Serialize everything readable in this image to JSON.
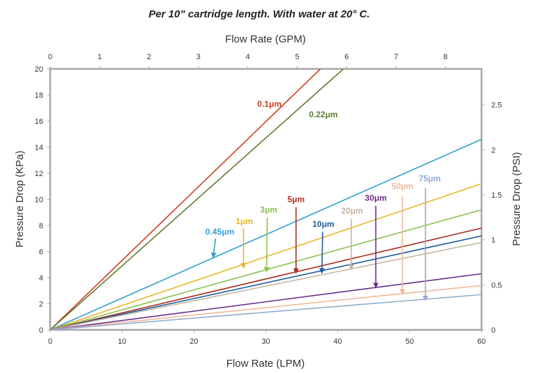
{
  "chart_data": {
    "type": "line",
    "title": "Per 10” cartridge length. With water at 20° C.",
    "xlabel": "Flow Rate (LPM)",
    "ylabel": "Pressure Drop (KPa)",
    "x2label": "Flow Rate (GPM)",
    "y2label": "Pressure Drop (PSI)",
    "xlim": [
      0,
      60
    ],
    "ylim": [
      0,
      20
    ],
    "x2lim": [
      0,
      8.73
    ],
    "y2lim": [
      0,
      2.9
    ],
    "xticks": [
      "0",
      "10",
      "20",
      "30",
      "40",
      "50",
      "60"
    ],
    "yticks": [
      "0",
      "2",
      "4",
      "6",
      "8",
      "10",
      "12",
      "14",
      "16",
      "18",
      "20"
    ],
    "x2ticks": [
      "0",
      "1",
      "2",
      "3",
      "4",
      "5",
      "6",
      "7",
      "8"
    ],
    "y2ticks": [
      "0",
      "0.5",
      "1",
      "1.5",
      "2",
      "2.5"
    ],
    "grid": false,
    "legend": "none",
    "series": [
      {
        "name": "0.1μm",
        "color": "#d03a1e",
        "x": [
          0,
          37.6
        ],
        "y": [
          0,
          20
        ]
      },
      {
        "name": "0.22μm",
        "color": "#5e7a30",
        "x": [
          0,
          40.8
        ],
        "y": [
          0,
          20
        ]
      },
      {
        "name": "0.45μm",
        "color": "#31a0cc",
        "x": [
          0,
          60
        ],
        "y": [
          0,
          14.6
        ]
      },
      {
        "name": "1μm",
        "color": "#e8b428",
        "x": [
          0,
          60
        ],
        "y": [
          0,
          11.2
        ]
      },
      {
        "name": "3μm",
        "color": "#8cc050",
        "x": [
          0,
          60
        ],
        "y": [
          0,
          9.2
        ]
      },
      {
        "name": "5μm",
        "color": "#a8301f",
        "x": [
          0,
          60
        ],
        "y": [
          0,
          7.8
        ]
      },
      {
        "name": "10μm",
        "color": "#1f5aa0",
        "x": [
          0,
          60
        ],
        "y": [
          0,
          7.2
        ]
      },
      {
        "name": "20μm",
        "color": "#c4b5a0",
        "x": [
          0,
          60
        ],
        "y": [
          0,
          6.7
        ]
      },
      {
        "name": "30μm",
        "color": "#6a2c8a",
        "x": [
          0,
          60
        ],
        "y": [
          0,
          4.3
        ]
      },
      {
        "name": "50μm",
        "color": "#f0b896",
        "x": [
          0,
          60
        ],
        "y": [
          0,
          3.4
        ]
      },
      {
        "name": "75μm",
        "color": "#90acd0",
        "x": [
          0,
          60
        ],
        "y": [
          0,
          2.7
        ]
      }
    ],
    "annotations": [
      {
        "text": "0.1μm",
        "color": "#d03a1e",
        "label_at": [
          30.5,
          17.1
        ],
        "arrow": false
      },
      {
        "text": "0.22μm",
        "color": "#5e7a30",
        "label_at": [
          38.0,
          16.3
        ],
        "arrow": false
      },
      {
        "text": "0.45μm",
        "color": "#31a0cc",
        "label_at": [
          23.6,
          7.3
        ],
        "arrow": true,
        "arrow_from": [
          23.0,
          7.0
        ],
        "arrow_to": [
          22.7,
          5.7
        ]
      },
      {
        "text": "1μm",
        "color": "#e8b428",
        "label_at": [
          27.0,
          8.1
        ],
        "arrow": true,
        "arrow_from": [
          26.9,
          7.8
        ],
        "arrow_to": [
          26.9,
          4.9
        ]
      },
      {
        "text": "3μm",
        "color": "#8cc050",
        "label_at": [
          30.4,
          9.0
        ],
        "arrow": true,
        "arrow_from": [
          30.2,
          8.6
        ],
        "arrow_to": [
          30.1,
          4.6
        ]
      },
      {
        "text": "5μm",
        "color": "#a8301f",
        "label_at": [
          34.2,
          9.8
        ],
        "arrow": true,
        "arrow_from": [
          34.2,
          9.4
        ],
        "arrow_to": [
          34.2,
          4.5
        ]
      },
      {
        "text": "10μm",
        "color": "#1f5aa0",
        "label_at": [
          38.0,
          7.9
        ],
        "arrow": true,
        "arrow_from": [
          37.9,
          7.5
        ],
        "arrow_to": [
          37.8,
          4.5
        ]
      },
      {
        "text": "20μm",
        "color": "#c4b5a0",
        "label_at": [
          42.0,
          8.9
        ],
        "arrow": true,
        "arrow_from": [
          41.9,
          8.5
        ],
        "arrow_to": [
          41.9,
          4.8
        ]
      },
      {
        "text": "30μm",
        "color": "#6a2c8a",
        "label_at": [
          45.3,
          9.9
        ],
        "arrow": true,
        "arrow_from": [
          45.3,
          9.5
        ],
        "arrow_to": [
          45.3,
          3.4
        ]
      },
      {
        "text": "50μm",
        "color": "#f0b896",
        "label_at": [
          49.0,
          10.8
        ],
        "arrow": true,
        "arrow_from": [
          49.0,
          10.3
        ],
        "arrow_to": [
          49.0,
          2.9
        ]
      },
      {
        "text": "75μm",
        "color": "#90acd0",
        "label_at": [
          52.8,
          11.4
        ],
        "arrow": true,
        "arrow_from": [
          52.2,
          10.9
        ],
        "arrow_to": [
          52.2,
          2.4
        ]
      }
    ]
  }
}
